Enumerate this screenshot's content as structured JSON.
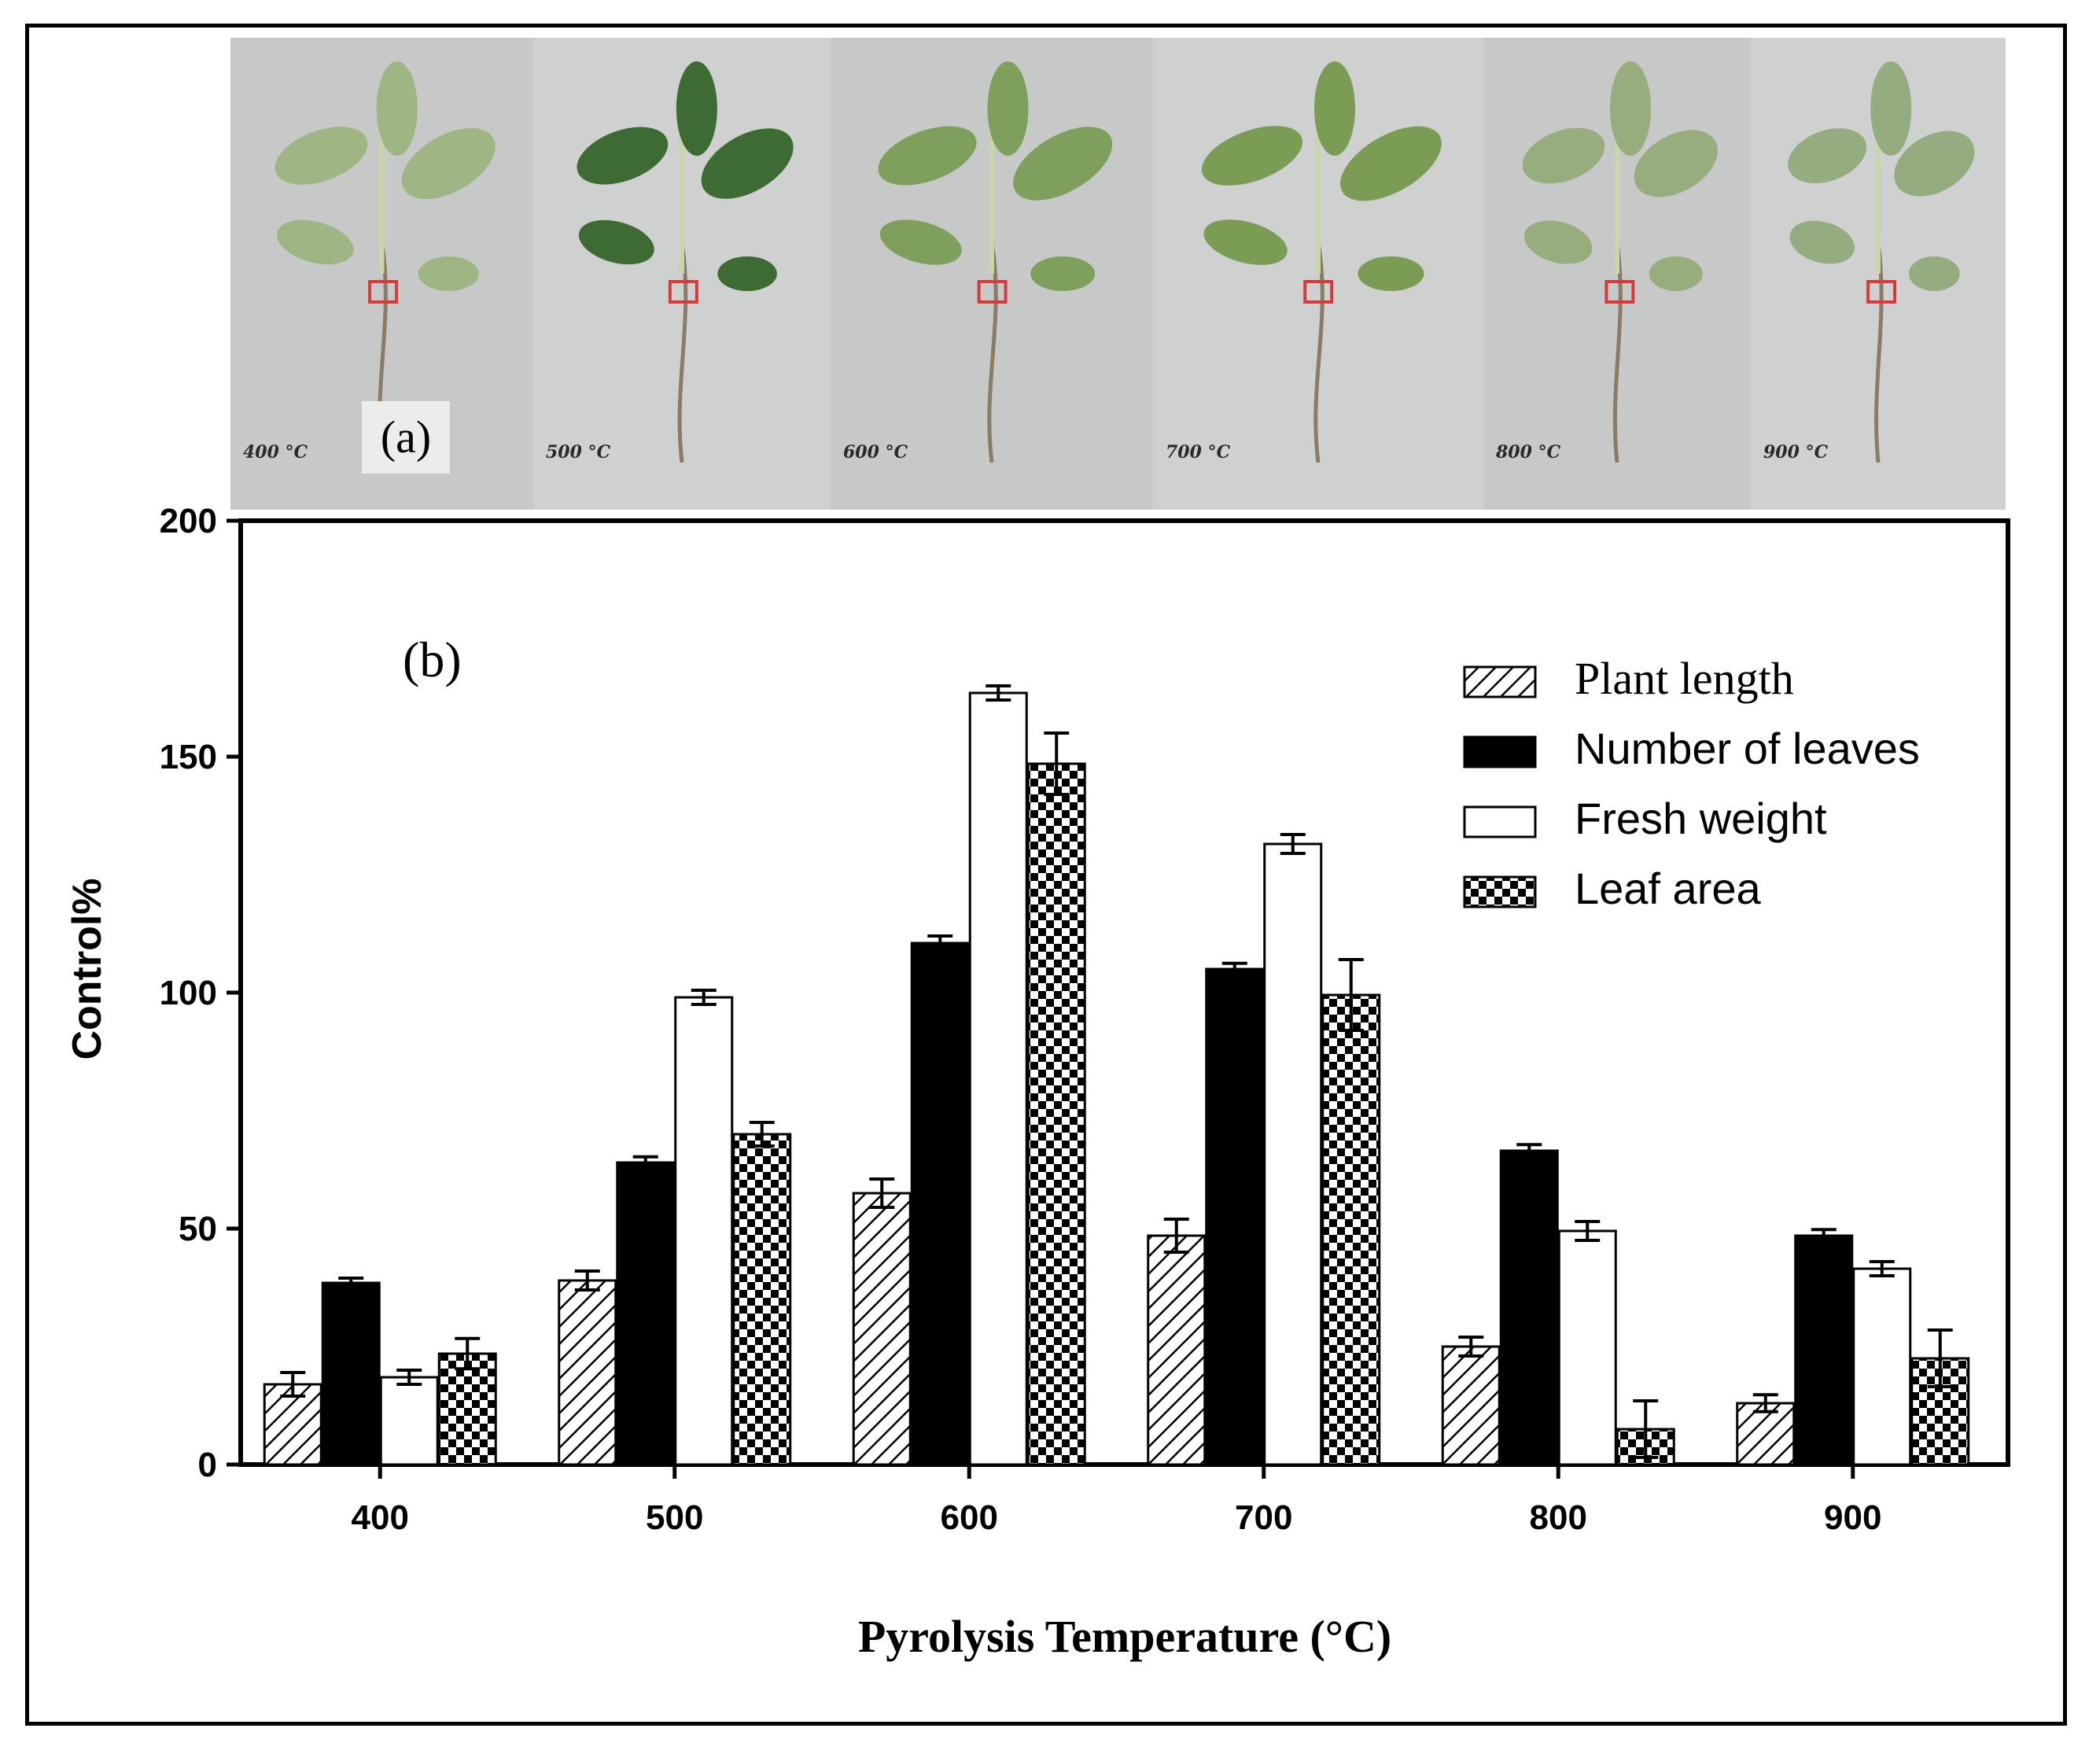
{
  "panel_a": {
    "label": "(a)",
    "photos": [
      {
        "caption": "400 °C"
      },
      {
        "caption": "500 °C"
      },
      {
        "caption": "600 °C"
      },
      {
        "caption": "700 °C"
      },
      {
        "caption": "800 °C"
      },
      {
        "caption": "900 °C"
      }
    ]
  },
  "chart_data": {
    "type": "bar",
    "panel_label": "(b)",
    "categories": [
      "400",
      "500",
      "600",
      "700",
      "800",
      "900"
    ],
    "xlabel": "Pyrolysis Temperature (°C)",
    "ylabel": "Control%",
    "ylim": [
      0,
      200
    ],
    "yticks": [
      0,
      50,
      100,
      150,
      200
    ],
    "grid": false,
    "legend_position": "top-right",
    "series": [
      {
        "name": "Plant length",
        "pattern": "hatch",
        "values": [
          17,
          39,
          57.5,
          48.5,
          25,
          13
        ],
        "errors": [
          2.5,
          2,
          3,
          3.5,
          2,
          1.8
        ]
      },
      {
        "name": "Number of leaves",
        "pattern": "solid-black",
        "values": [
          38.5,
          64,
          110.5,
          105,
          66.5,
          48.5
        ],
        "errors": [
          1,
          1.2,
          1.5,
          1.2,
          1.3,
          1.3
        ]
      },
      {
        "name": "Fresh weight",
        "pattern": "white",
        "values": [
          18.5,
          99,
          163.5,
          131.5,
          49.5,
          41.5
        ],
        "errors": [
          1.5,
          1.5,
          1.5,
          2,
          2,
          1.5
        ]
      },
      {
        "name": "Leaf area",
        "pattern": "checker",
        "values": [
          23.5,
          70,
          148.5,
          99.5,
          7.5,
          22.5
        ],
        "errors": [
          3.2,
          2.5,
          6.5,
          7.5,
          6,
          6
        ]
      }
    ]
  }
}
